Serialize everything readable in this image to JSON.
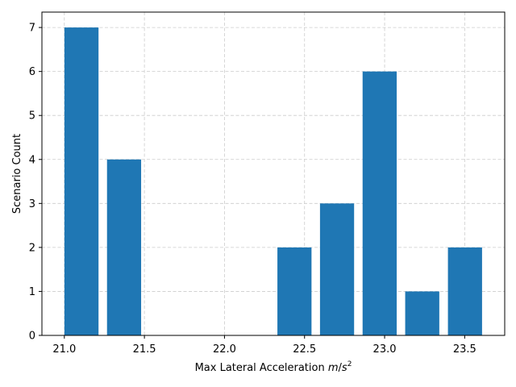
{
  "chart_data": {
    "type": "bar",
    "title": "",
    "xlabel": "Max Lateral Acceleration m/s²",
    "xlabel_main": "Max Lateral Acceleration ",
    "xlabel_unit_m": "m",
    "xlabel_unit_slash": "/",
    "xlabel_unit_s": "s",
    "xlabel_unit_exp": "2",
    "ylabel": "Scenario Count",
    "xlim": [
      20.86,
      23.75
    ],
    "ylim": [
      0,
      7.35
    ],
    "xticks": [
      21.0,
      21.5,
      22.0,
      22.5,
      23.0,
      23.5
    ],
    "xtick_labels": [
      "21.0",
      "21.5",
      "22.0",
      "22.5",
      "23.0",
      "23.5"
    ],
    "yticks": [
      0,
      1,
      2,
      3,
      4,
      5,
      6,
      7
    ],
    "ytick_labels": [
      "0",
      "1",
      "2",
      "3",
      "4",
      "5",
      "6",
      "7"
    ],
    "bar_width": 0.213,
    "x": [
      21.107,
      21.373,
      22.437,
      22.703,
      22.969,
      23.235,
      23.502
    ],
    "values": [
      7,
      4,
      2,
      3,
      6,
      1,
      2
    ],
    "grid": true,
    "bar_color": "#1f77b4",
    "grid_color": "#cccccc"
  }
}
